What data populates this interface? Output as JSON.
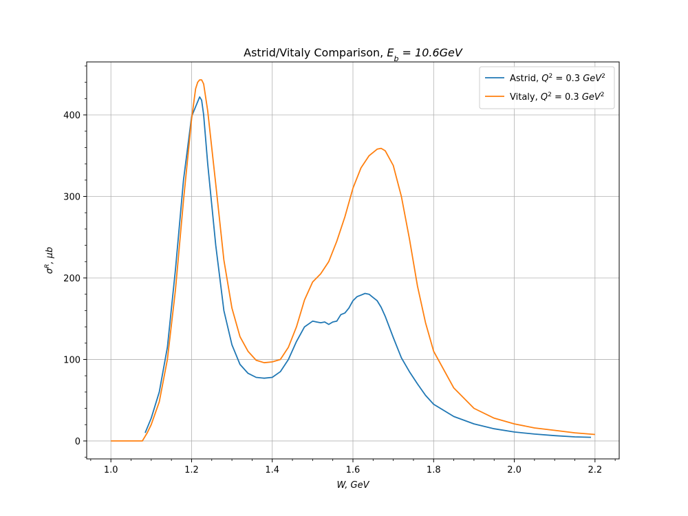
{
  "chart_data": {
    "type": "line",
    "title_prefix": "Astrid/Vitaly Comparison, ",
    "title_math": "E",
    "title_math_sub": "b",
    "title_math_rest": " = 10.6GeV",
    "xlabel": "W, GeV",
    "ylabel_symbol": "σ",
    "ylabel_sup": "R",
    "ylabel_rest": ", μb",
    "xlim": [
      0.94,
      2.26
    ],
    "ylim": [
      -22,
      465
    ],
    "xticks": [
      1.0,
      1.2,
      1.4,
      1.6,
      1.8,
      2.0,
      2.2
    ],
    "xtick_labels": [
      "1.0",
      "1.2",
      "1.4",
      "1.6",
      "1.8",
      "2.0",
      "2.2"
    ],
    "yticks": [
      0,
      100,
      200,
      300,
      400
    ],
    "ytick_labels": [
      "0",
      "100",
      "200",
      "300",
      "400"
    ],
    "grid": true,
    "legend_position": "top-right",
    "series": [
      {
        "name": "Astrid, Q² = 0.3 GeV²",
        "legend_prefix": "Astrid, ",
        "color": "#1f77b4",
        "x": [
          1.085,
          1.1,
          1.12,
          1.14,
          1.16,
          1.18,
          1.2,
          1.21,
          1.22,
          1.225,
          1.23,
          1.24,
          1.26,
          1.28,
          1.3,
          1.32,
          1.34,
          1.36,
          1.38,
          1.4,
          1.42,
          1.44,
          1.46,
          1.48,
          1.5,
          1.51,
          1.52,
          1.53,
          1.54,
          1.55,
          1.56,
          1.57,
          1.58,
          1.59,
          1.6,
          1.61,
          1.62,
          1.63,
          1.64,
          1.65,
          1.66,
          1.67,
          1.68,
          1.7,
          1.72,
          1.74,
          1.76,
          1.78,
          1.8,
          1.85,
          1.9,
          1.95,
          2.0,
          2.05,
          2.1,
          2.15,
          2.19
        ],
        "values": [
          10,
          28,
          60,
          115,
          210,
          320,
          398,
          410,
          422,
          418,
          400,
          340,
          240,
          160,
          118,
          94,
          83,
          78,
          77,
          78,
          85,
          100,
          122,
          140,
          147,
          146,
          145,
          146,
          143,
          146,
          147,
          155,
          157,
          163,
          172,
          177,
          179,
          181,
          180,
          176,
          172,
          164,
          153,
          127,
          102,
          85,
          70,
          56,
          45,
          30,
          21,
          15,
          11,
          8.5,
          6.5,
          5,
          4.5
        ]
      },
      {
        "name": "Vitaly, Q² = 0.3 GeV²",
        "legend_prefix": "Vitaly, ",
        "color": "#ff7f0e",
        "x": [
          1.0,
          1.02,
          1.04,
          1.06,
          1.078,
          1.09,
          1.1,
          1.12,
          1.14,
          1.16,
          1.18,
          1.2,
          1.21,
          1.215,
          1.22,
          1.225,
          1.23,
          1.24,
          1.26,
          1.28,
          1.3,
          1.32,
          1.34,
          1.36,
          1.38,
          1.4,
          1.42,
          1.44,
          1.46,
          1.48,
          1.5,
          1.52,
          1.54,
          1.56,
          1.58,
          1.6,
          1.62,
          1.64,
          1.66,
          1.67,
          1.68,
          1.7,
          1.72,
          1.74,
          1.76,
          1.78,
          1.8,
          1.85,
          1.9,
          1.95,
          2.0,
          2.05,
          2.1,
          2.15,
          2.2
        ],
        "values": [
          0,
          0,
          0,
          0,
          0,
          10,
          20,
          48,
          100,
          185,
          295,
          395,
          432,
          440,
          443,
          443,
          438,
          405,
          315,
          222,
          163,
          128,
          110,
          99,
          96,
          97,
          100,
          115,
          140,
          173,
          195,
          205,
          220,
          245,
          275,
          310,
          335,
          350,
          358,
          359,
          356,
          338,
          300,
          248,
          190,
          145,
          110,
          65,
          40,
          28,
          21,
          16,
          13,
          10,
          8
        ]
      }
    ],
    "legend_q_symbol": "Q",
    "legend_q_sup": "2",
    "legend_q_value": " = 0.3",
    "legend_unit": "GeV",
    "legend_unit_sup": "2"
  }
}
